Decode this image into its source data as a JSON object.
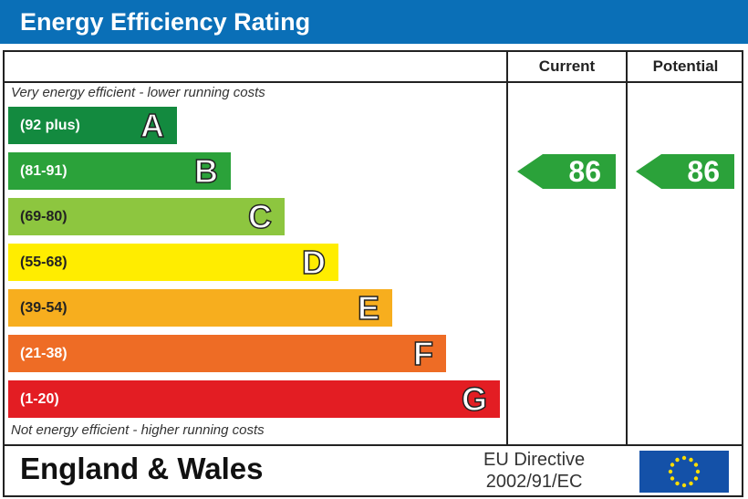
{
  "header": {
    "title": "Energy Efficiency Rating",
    "color": "#0a6fb7"
  },
  "chart_data": {
    "type": "bar",
    "columns": [
      "Current",
      "Potential"
    ],
    "top_note": "Very energy efficient - lower running costs",
    "bottom_note": "Not energy efficient - higher running costs",
    "bands": [
      {
        "letter": "A",
        "range": "(92 plus)",
        "color": "#138a3f"
      },
      {
        "letter": "B",
        "range": "(81-91)",
        "color": "#2ba23a"
      },
      {
        "letter": "C",
        "range": "(69-80)",
        "color": "#8dc63f"
      },
      {
        "letter": "D",
        "range": "(55-68)",
        "color": "#ffed00"
      },
      {
        "letter": "E",
        "range": "(39-54)",
        "color": "#f7ae1e"
      },
      {
        "letter": "F",
        "range": "(21-38)",
        "color": "#ee6c25"
      },
      {
        "letter": "G",
        "range": "(1-20)",
        "color": "#e31d23"
      }
    ],
    "current": {
      "value": "86",
      "band": "B",
      "color": "#2ba23a"
    },
    "potential": {
      "value": "86",
      "band": "B",
      "color": "#2ba23a"
    }
  },
  "footer": {
    "region": "England & Wales",
    "directive_line1": "EU Directive",
    "directive_line2": "2002/91/EC"
  }
}
